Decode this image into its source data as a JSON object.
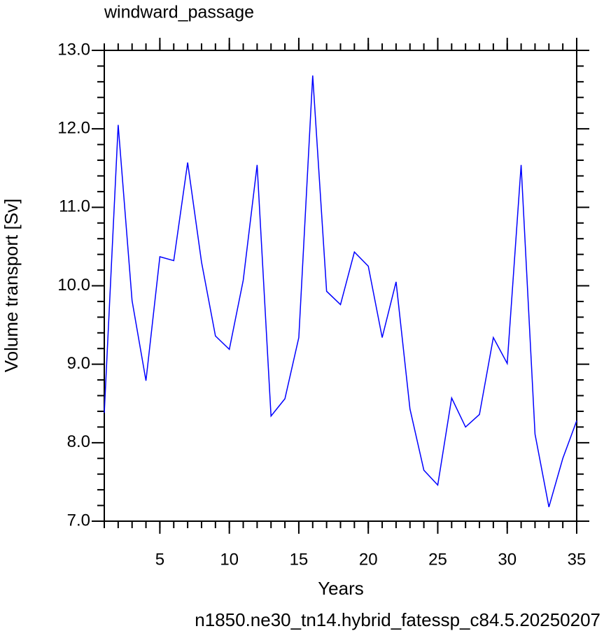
{
  "chart_data": {
    "type": "line",
    "title": "windward_passage",
    "subtitle": "n1850.ne30_tn14.hybrid_fatessp_c84.5.20250207",
    "x_label": "Years",
    "y_label": "Volume transport [Sv]",
    "x": [
      1,
      2,
      3,
      4,
      5,
      6,
      7,
      8,
      9,
      10,
      11,
      12,
      13,
      14,
      15,
      16,
      17,
      18,
      19,
      20,
      21,
      22,
      23,
      24,
      25,
      26,
      27,
      28,
      29,
      30,
      31,
      32,
      33,
      34,
      35
    ],
    "series": [
      {
        "color": "#0000ff",
        "values": [
          8.38,
          12.05,
          9.81,
          8.79,
          10.37,
          10.32,
          11.57,
          10.3,
          9.36,
          9.19,
          10.07,
          11.54,
          8.34,
          8.56,
          9.34,
          12.68,
          9.93,
          9.76,
          10.43,
          10.25,
          9.34,
          10.05,
          8.43,
          7.65,
          7.46,
          8.57,
          8.2,
          8.36,
          9.34,
          9.01,
          11.54,
          8.11,
          7.18,
          7.8,
          8.28
        ]
      }
    ],
    "xlim": [
      1,
      35
    ],
    "ylim": [
      7,
      13
    ],
    "xticks": [
      5,
      10,
      15,
      20,
      25,
      30,
      35
    ],
    "yticks": [
      {
        "value": 7,
        "label": "7.0"
      },
      {
        "value": 8,
        "label": "8.0"
      },
      {
        "value": 9,
        "label": "9.0"
      },
      {
        "value": 10,
        "label": "10.0"
      },
      {
        "value": 11,
        "label": "11.0"
      },
      {
        "value": 12,
        "label": "12.0"
      },
      {
        "value": 13,
        "label": "13.0"
      }
    ],
    "subtitle_color": "#0000ff"
  }
}
